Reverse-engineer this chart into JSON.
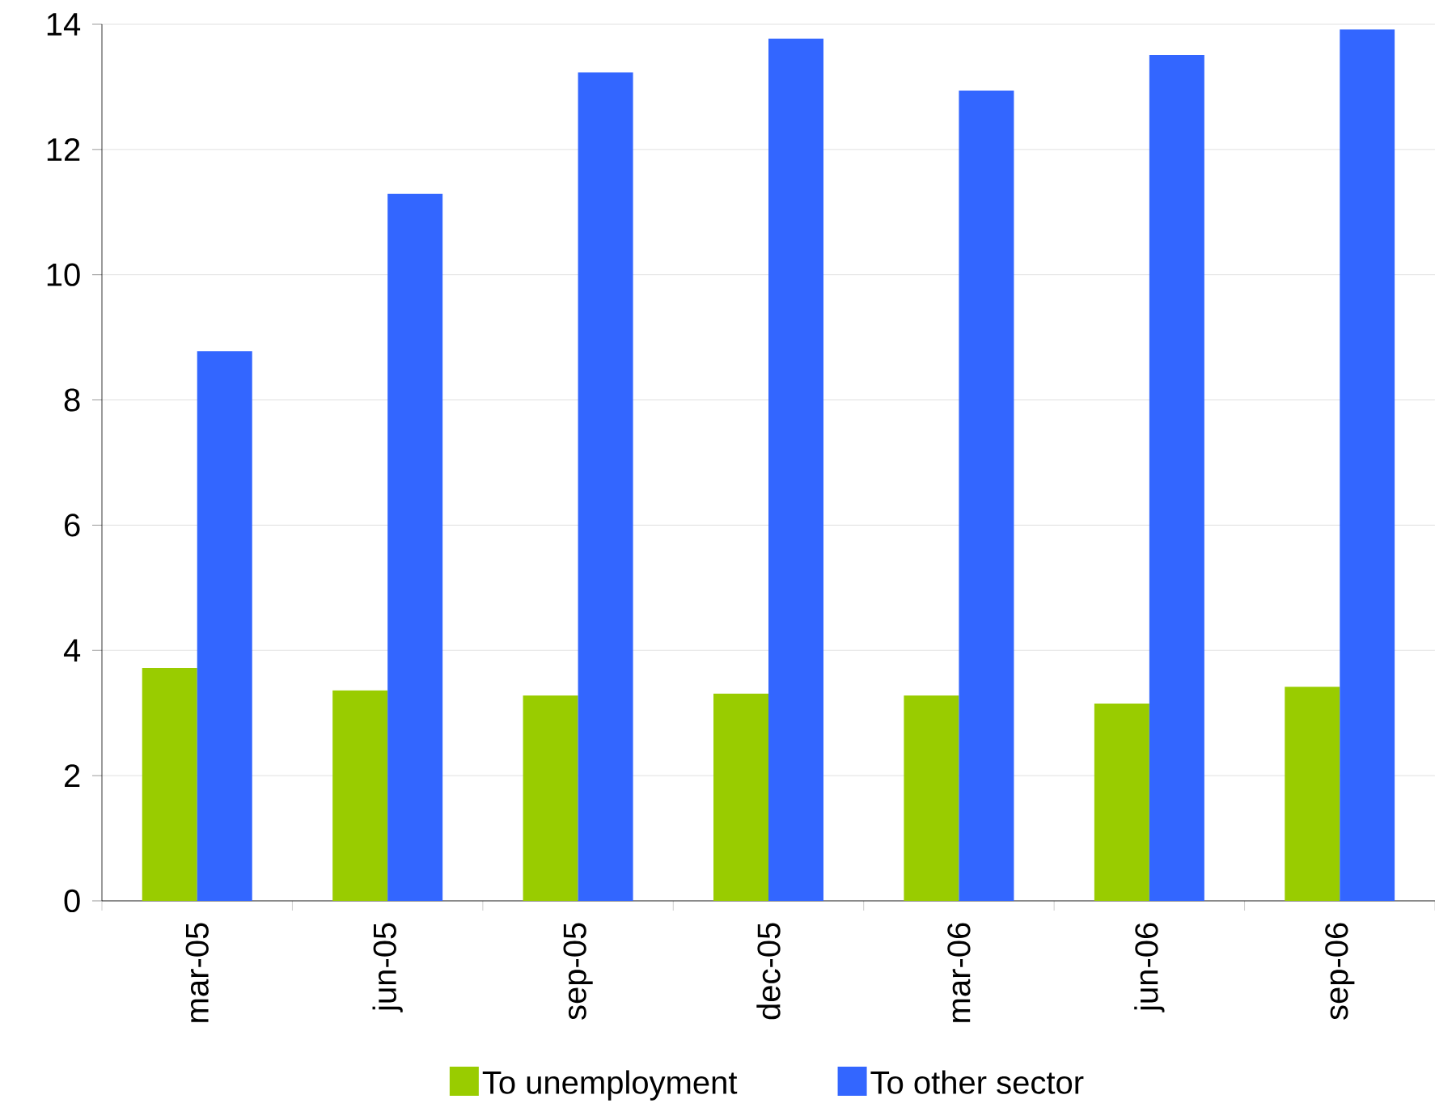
{
  "chart_data": {
    "type": "bar",
    "categories": [
      "mar-05",
      "jun-05",
      "sep-05",
      "dec-05",
      "mar-06",
      "jun-06",
      "sep-06"
    ],
    "series": [
      {
        "name": "To unemployment",
        "color": "#99cc00",
        "values": [
          3.72,
          3.36,
          3.28,
          3.31,
          3.28,
          3.15,
          3.42
        ]
      },
      {
        "name": "To other sector",
        "color": "#3366ff",
        "values": [
          8.78,
          11.29,
          13.23,
          13.77,
          12.94,
          13.51,
          13.92
        ]
      }
    ],
    "ylim": [
      0,
      14
    ],
    "yticks": [
      0,
      2,
      4,
      6,
      8,
      10,
      12,
      14
    ],
    "grid": "y",
    "legend": "bottom"
  }
}
